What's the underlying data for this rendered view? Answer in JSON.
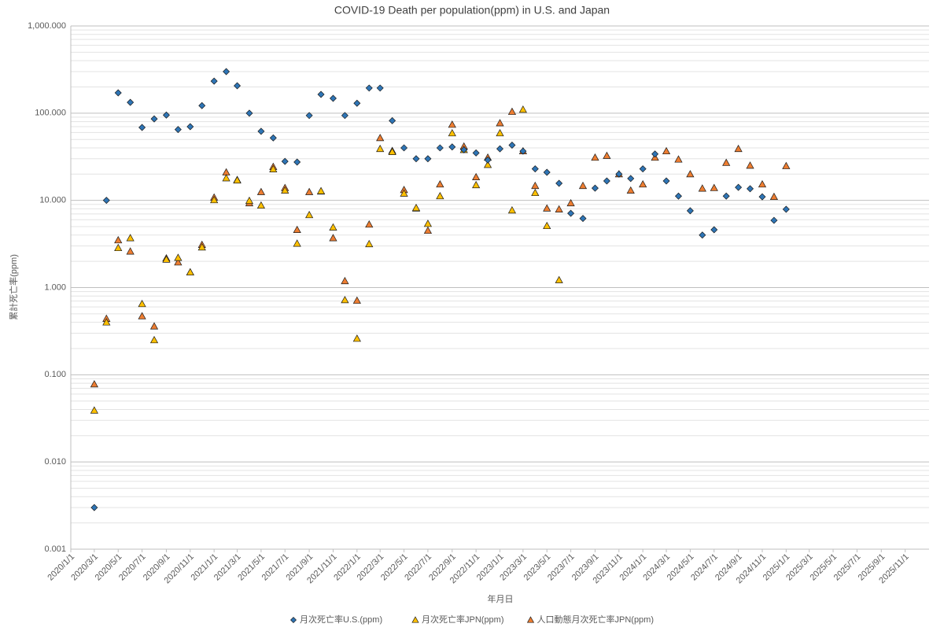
{
  "chart_data": {
    "type": "scatter",
    "title": "COVID-19 Death per population(ppm) in U.S.  and  Japan",
    "x_label": "年月日",
    "y_label": "累計死亡率(ppm)",
    "log_y": true,
    "grid": true,
    "legend": "bottom",
    "x": [
      "2020/3/1",
      "2020/4/1",
      "2020/5/1",
      "2020/6/1",
      "2020/7/1",
      "2020/8/1",
      "2020/9/1",
      "2020/10/1",
      "2020/11/1",
      "2020/12/1",
      "2021/1/1",
      "2021/2/1",
      "2021/3/1",
      "2021/4/1",
      "2021/5/1",
      "2021/6/1",
      "2021/7/1",
      "2021/8/1",
      "2021/9/1",
      "2021/10/1",
      "2021/11/1",
      "2021/12/1",
      "2022/1/1",
      "2022/2/1",
      "2022/3/1",
      "2022/4/1",
      "2022/5/1",
      "2022/6/1",
      "2022/7/1",
      "2022/8/1",
      "2022/9/1",
      "2022/10/1",
      "2022/11/1",
      "2022/12/1",
      "2023/1/1",
      "2023/2/1",
      "2023/3/1",
      "2023/4/1",
      "2023/5/1",
      "2023/6/1",
      "2023/7/1",
      "2023/8/1",
      "2023/9/1",
      "2023/10/1",
      "2023/11/1",
      "2023/12/1",
      "2024/1/1",
      "2024/2/1",
      "2024/3/1",
      "2024/4/1",
      "2024/5/1",
      "2024/6/1",
      "2024/7/1",
      "2024/8/1",
      "2024/9/1",
      "2024/10/1",
      "2024/11/1",
      "2024/12/1",
      "2025/1/1"
    ],
    "xlim": [
      "2020/1/1",
      "2026/1/1"
    ],
    "xticks": [
      "2020/1/1",
      "2020/3/1",
      "2020/5/1",
      "2020/7/1",
      "2020/9/1",
      "2020/11/1",
      "2021/1/1",
      "2021/3/1",
      "2021/5/1",
      "2021/7/1",
      "2021/9/1",
      "2021/11/1",
      "2022/1/1",
      "2022/3/1",
      "2022/5/1",
      "2022/7/1",
      "2022/9/1",
      "2022/11/1",
      "2023/1/1",
      "2023/3/1",
      "2023/5/1",
      "2023/7/1",
      "2023/9/1",
      "2023/11/1",
      "2024/1/1",
      "2024/3/1",
      "2024/5/1",
      "2024/7/1",
      "2024/9/1",
      "2024/11/1",
      "2025/1/1",
      "2025/3/1",
      "2025/5/1",
      "2025/7/1",
      "2025/9/1",
      "2025/11/1"
    ],
    "ylim": [
      0.001,
      1000
    ],
    "yticks": [
      {
        "value": 0.001,
        "label": "0.001"
      },
      {
        "value": 0.01,
        "label": "0.010"
      },
      {
        "value": 0.1,
        "label": "0.100"
      },
      {
        "value": 1,
        "label": "1.000"
      },
      {
        "value": 10,
        "label": "10.000"
      },
      {
        "value": 100,
        "label": "100.000"
      },
      {
        "value": 1000,
        "label": "1,000.000"
      }
    ],
    "series": [
      {
        "name": "月次死亡率U.S.(ppm)",
        "color": "#2e75b6",
        "marker": "diamond",
        "values": [
          0.003,
          10,
          171,
          133,
          68.6,
          86,
          95,
          65,
          70,
          122,
          233,
          300,
          206,
          100,
          62,
          52,
          28,
          27.5,
          94,
          164,
          148,
          94,
          130,
          194,
          194,
          82,
          40,
          30,
          30,
          40,
          41,
          38,
          35,
          29,
          39,
          43,
          36.7,
          23,
          21,
          15.7,
          7.1,
          6.2,
          13.8,
          16.7,
          20,
          17.8,
          23,
          34,
          16.7,
          11.2,
          7.6,
          4.0,
          4.6,
          11.2,
          14.1,
          13.6,
          11,
          5.9,
          7.9
        ]
      },
      {
        "name": "月次死亡率JPN(ppm)",
        "color": "#ffc000",
        "marker": "triangle",
        "values": [
          0.039,
          0.4,
          2.85,
          3.7,
          0.65,
          0.25,
          2.1,
          2.2,
          1.5,
          2.9,
          10.1,
          18,
          17,
          9.9,
          8.75,
          22.8,
          13,
          3.2,
          6.8,
          12.8,
          4.9,
          0.72,
          0.26,
          3.16,
          39,
          36,
          12,
          8.2,
          5.4,
          11.2,
          59,
          38,
          15,
          25.6,
          59,
          7.7,
          110,
          12.2,
          5.1,
          1.22,
          null,
          null,
          null,
          null,
          null,
          null,
          null,
          null,
          null,
          null,
          null,
          null,
          null,
          null,
          null,
          null,
          null,
          null,
          null
        ]
      },
      {
        "name": "人口動態月次死亡率JPN(ppm)",
        "color": "#ed7d31",
        "marker": "triangle",
        "values": [
          0.078,
          0.44,
          3.5,
          2.6,
          0.47,
          0.36,
          2.17,
          1.95,
          1.5,
          3.1,
          10.8,
          21,
          17.2,
          9.3,
          12.5,
          24.3,
          13.9,
          4.6,
          12.5,
          12.7,
          3.7,
          1.19,
          0.71,
          5.3,
          52,
          37,
          13.2,
          8.1,
          4.5,
          15.3,
          74,
          41.6,
          18.5,
          31,
          77,
          104,
          36.7,
          14.7,
          8.1,
          7.9,
          9.3,
          14.7,
          31,
          32.5,
          20,
          13,
          15.3,
          31,
          36.7,
          29.5,
          20,
          13.7,
          13.9,
          27,
          39,
          25.1,
          15.3,
          11,
          24.8
        ]
      }
    ]
  }
}
